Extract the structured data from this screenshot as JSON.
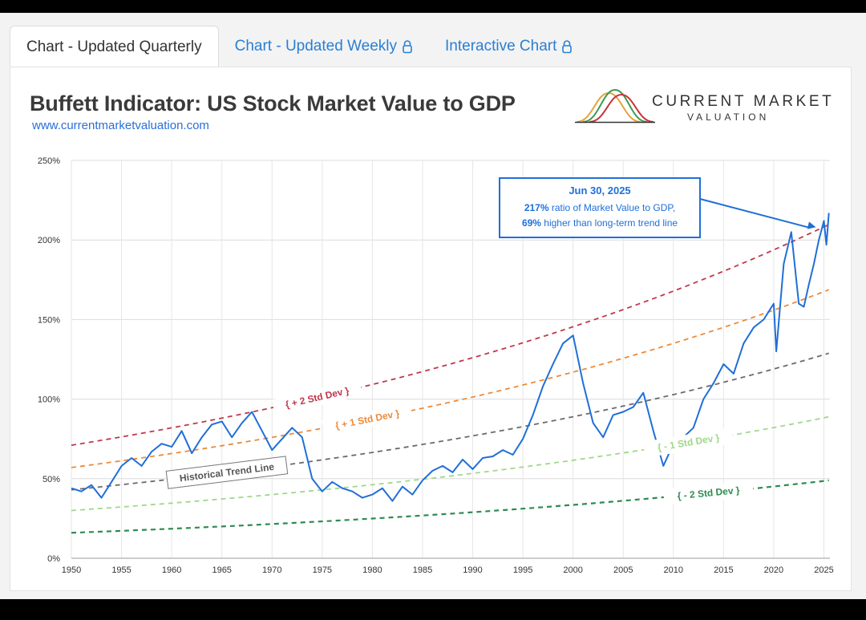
{
  "tabs": [
    {
      "label": "Chart - Updated Quarterly",
      "active": true
    },
    {
      "label": "Chart - Updated Weekly",
      "locked": true
    },
    {
      "label": "Interactive Chart",
      "locked": true
    }
  ],
  "header": {
    "title": "Buffett Indicator: US Stock Market Value to GDP",
    "url": "www.currentmarketvaluation.com",
    "brand_line1": "CURRENT MARKET",
    "brand_line2": "VALUATION"
  },
  "colors": {
    "series": "#1f6fd8",
    "plus2": "#c0384b",
    "plus1": "#ec8a3a",
    "trend": "#6b6b6b",
    "minus1": "#9fd88b",
    "minus2": "#2e8b4e",
    "callout": "#1f6fd8"
  },
  "chart_data": {
    "type": "line",
    "xlim": [
      1950,
      2025.6
    ],
    "ylim": [
      0,
      250
    ],
    "x_ticks": [
      1950,
      1955,
      1960,
      1965,
      1970,
      1975,
      1980,
      1985,
      1990,
      1995,
      2000,
      2005,
      2010,
      2015,
      2020,
      2025
    ],
    "y_ticks": [
      0,
      50,
      100,
      150,
      200,
      250
    ],
    "y_tick_labels": [
      "0%",
      "50%",
      "100%",
      "150%",
      "200%",
      "250%"
    ],
    "grid": true,
    "bands": [
      {
        "name": "+ 2 Std Dev",
        "key": "plus2",
        "start": 71,
        "end": 210
      },
      {
        "name": "+ 1 Std Dev",
        "key": "plus1",
        "start": 57,
        "end": 169
      },
      {
        "name": "Historical Trend Line",
        "key": "trend",
        "start": 43,
        "end": 129
      },
      {
        "name": "- 1 Std Dev",
        "key": "minus1",
        "start": 30,
        "end": 89
      },
      {
        "name": "- 2 Std Dev",
        "key": "minus2",
        "start": 16,
        "end": 49
      }
    ],
    "series": [
      {
        "points": [
          [
            1950,
            44
          ],
          [
            1951,
            42
          ],
          [
            1952,
            46
          ],
          [
            1953,
            38
          ],
          [
            1954,
            48
          ],
          [
            1955,
            58
          ],
          [
            1956,
            63
          ],
          [
            1957,
            58
          ],
          [
            1958,
            67
          ],
          [
            1959,
            72
          ],
          [
            1960,
            70
          ],
          [
            1961,
            80
          ],
          [
            1962,
            66
          ],
          [
            1963,
            76
          ],
          [
            1964,
            84
          ],
          [
            1965,
            86
          ],
          [
            1966,
            76
          ],
          [
            1967,
            85
          ],
          [
            1968,
            92
          ],
          [
            1969,
            80
          ],
          [
            1970,
            68
          ],
          [
            1971,
            75
          ],
          [
            1972,
            82
          ],
          [
            1973,
            76
          ],
          [
            1974,
            50
          ],
          [
            1975,
            42
          ],
          [
            1976,
            48
          ],
          [
            1977,
            44
          ],
          [
            1978,
            42
          ],
          [
            1979,
            38
          ],
          [
            1980,
            40
          ],
          [
            1981,
            44
          ],
          [
            1982,
            36
          ],
          [
            1983,
            45
          ],
          [
            1984,
            40
          ],
          [
            1985,
            49
          ],
          [
            1986,
            55
          ],
          [
            1987,
            58
          ],
          [
            1988,
            54
          ],
          [
            1989,
            62
          ],
          [
            1990,
            56
          ],
          [
            1991,
            63
          ],
          [
            1992,
            64
          ],
          [
            1993,
            68
          ],
          [
            1994,
            65
          ],
          [
            1995,
            75
          ],
          [
            1996,
            90
          ],
          [
            1997,
            108
          ],
          [
            1998,
            122
          ],
          [
            1999,
            135
          ],
          [
            2000,
            140
          ],
          [
            2001,
            110
          ],
          [
            2002,
            85
          ],
          [
            2003,
            76
          ],
          [
            2004,
            90
          ],
          [
            2005,
            92
          ],
          [
            2006,
            95
          ],
          [
            2007,
            104
          ],
          [
            2008,
            80
          ],
          [
            2009,
            58
          ],
          [
            2010,
            72
          ],
          [
            2011,
            76
          ],
          [
            2012,
            82
          ],
          [
            2013,
            100
          ],
          [
            2014,
            110
          ],
          [
            2015,
            122
          ],
          [
            2016,
            116
          ],
          [
            2017,
            135
          ],
          [
            2018,
            145
          ],
          [
            2019,
            150
          ],
          [
            2020,
            160
          ],
          [
            2020.25,
            130
          ],
          [
            2021,
            185
          ],
          [
            2021.75,
            205
          ],
          [
            2022.5,
            160
          ],
          [
            2023,
            158
          ],
          [
            2023.5,
            172
          ],
          [
            2024,
            185
          ],
          [
            2024.5,
            200
          ],
          [
            2025,
            212
          ],
          [
            2025.25,
            197
          ],
          [
            2025.5,
            217
          ]
        ]
      }
    ],
    "annotations": [
      {
        "date": "Jun 30, 2025",
        "ratio_value": "217%",
        "ratio_text": "ratio of Market Value to GDP,",
        "above_value": "69%",
        "above_text": "higher than long-term trend line"
      }
    ]
  }
}
